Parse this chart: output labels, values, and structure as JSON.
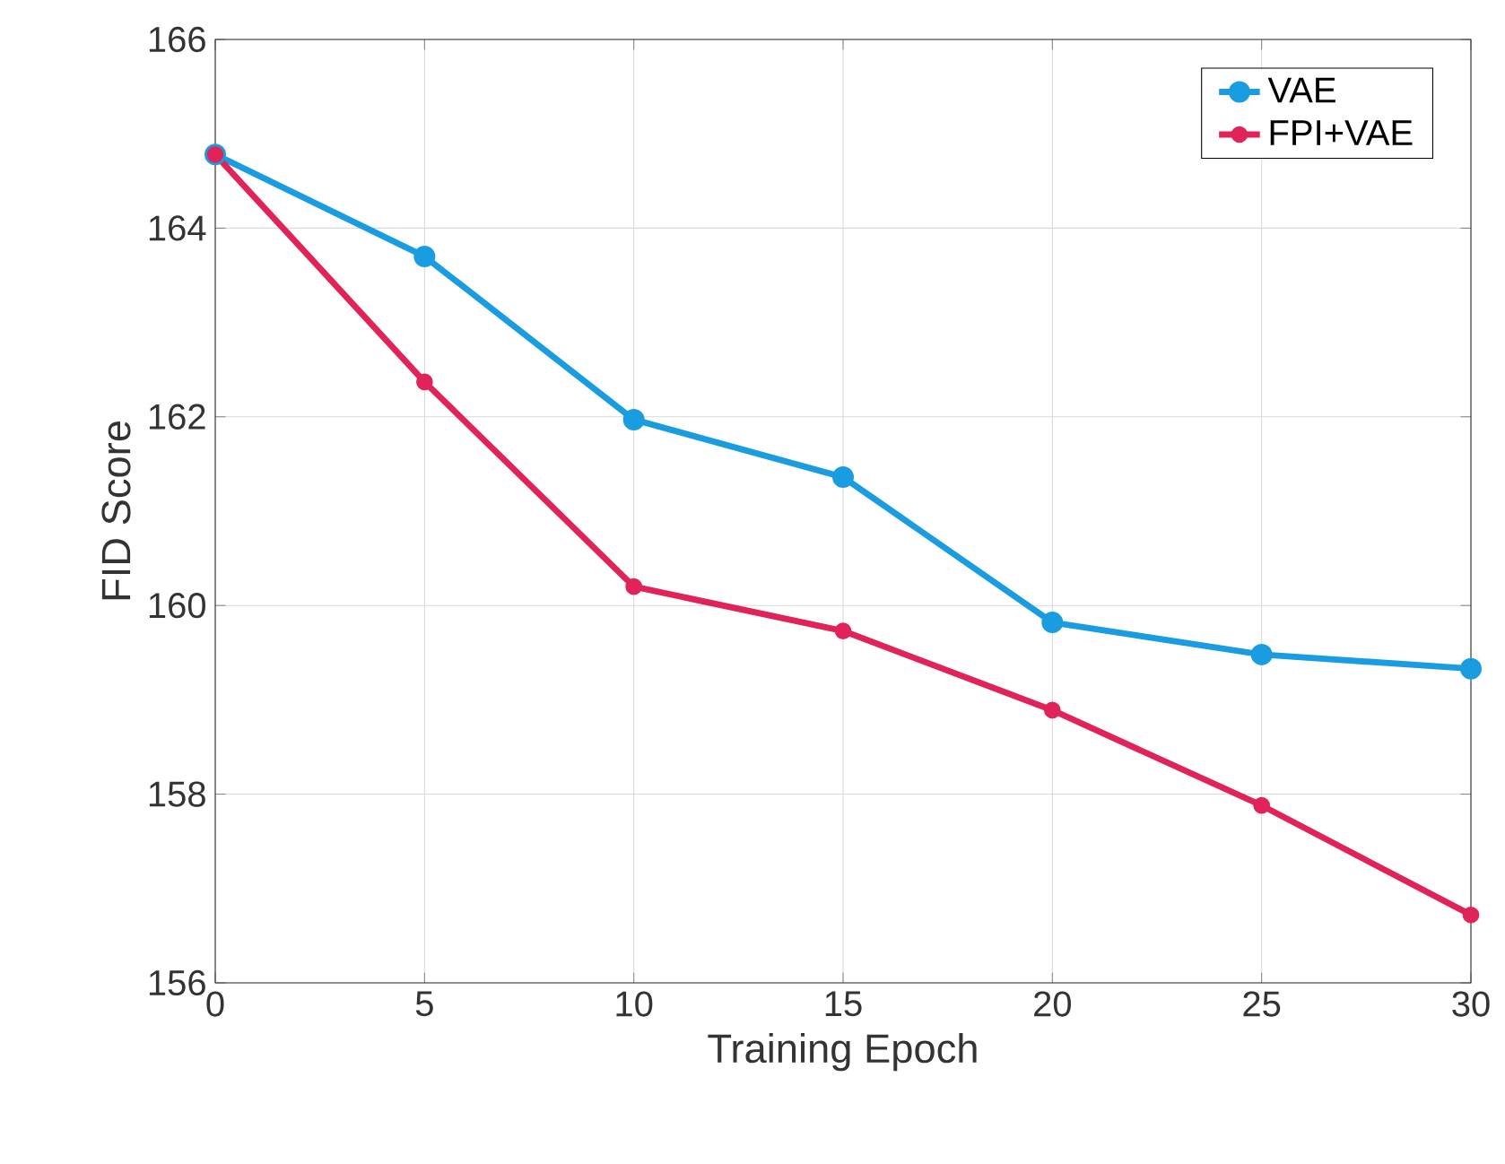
{
  "chart_data": {
    "type": "line",
    "xlabel": "Training Epoch",
    "ylabel": "FID Score",
    "x": [
      0,
      5,
      10,
      15,
      20,
      25,
      30
    ],
    "series": [
      {
        "name": "VAE",
        "color": "#1a9de0",
        "values": [
          164.78,
          163.7,
          161.97,
          161.36,
          159.82,
          159.48,
          159.33
        ]
      },
      {
        "name": "FPI+VAE",
        "color": "#e0245a",
        "values": [
          164.78,
          162.37,
          160.2,
          159.73,
          158.89,
          157.88,
          156.72
        ]
      }
    ],
    "xlim": [
      0,
      30
    ],
    "ylim": [
      156,
      166
    ],
    "xticks": [
      0,
      5,
      10,
      15,
      20,
      25,
      30
    ],
    "yticks": [
      156,
      158,
      160,
      162,
      164,
      166
    ],
    "grid": true,
    "legend": "top right",
    "marker": "circle",
    "line_style": "solid"
  }
}
